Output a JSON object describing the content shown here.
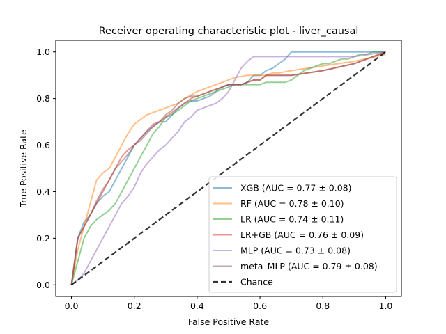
{
  "chart_data": {
    "type": "line",
    "title": "Receiver operating characteristic plot - liver_causal",
    "xlabel": "False Positive Rate",
    "ylabel": "True Positive Rate",
    "xlim": [
      -0.05,
      1.05
    ],
    "ylim": [
      -0.05,
      1.05
    ],
    "xticks": [
      0.0,
      0.2,
      0.4,
      0.6,
      0.8,
      1.0
    ],
    "yticks": [
      0.0,
      0.2,
      0.4,
      0.6,
      0.8,
      1.0
    ],
    "tick_labels": [
      "0.0",
      "0.2",
      "0.4",
      "0.6",
      "0.8",
      "1.0"
    ],
    "grid": false,
    "legend_position": "lower-right",
    "series": [
      {
        "name": "XGB (AUC = 0.77 ± 0.08)",
        "color": "#1f77b4",
        "x": [
          0.0,
          0.01,
          0.02,
          0.04,
          0.06,
          0.08,
          0.1,
          0.12,
          0.14,
          0.16,
          0.18,
          0.2,
          0.22,
          0.24,
          0.26,
          0.28,
          0.3,
          0.32,
          0.34,
          0.36,
          0.38,
          0.4,
          0.42,
          0.44,
          0.46,
          0.48,
          0.5,
          0.52,
          0.54,
          0.56,
          0.58,
          0.6,
          0.62,
          0.64,
          0.66,
          0.68,
          0.7,
          0.72,
          0.8,
          0.9,
          1.0
        ],
        "y": [
          0.0,
          0.1,
          0.2,
          0.27,
          0.3,
          0.35,
          0.38,
          0.4,
          0.45,
          0.5,
          0.55,
          0.6,
          0.63,
          0.66,
          0.68,
          0.7,
          0.7,
          0.73,
          0.76,
          0.78,
          0.79,
          0.79,
          0.8,
          0.81,
          0.83,
          0.85,
          0.86,
          0.86,
          0.86,
          0.87,
          0.9,
          0.9,
          0.92,
          0.93,
          0.95,
          0.97,
          1.0,
          1.0,
          1.0,
          1.0,
          1.0
        ]
      },
      {
        "name": "RF (AUC = 0.78 ± 0.10)",
        "color": "#ff7f0e",
        "x": [
          0.0,
          0.02,
          0.04,
          0.06,
          0.07,
          0.08,
          0.1,
          0.12,
          0.14,
          0.16,
          0.18,
          0.2,
          0.22,
          0.24,
          0.26,
          0.28,
          0.3,
          0.32,
          0.34,
          0.36,
          0.4,
          0.44,
          0.48,
          0.52,
          0.56,
          0.6,
          0.62,
          0.64,
          0.66,
          0.7,
          0.8,
          0.9,
          1.0
        ],
        "y": [
          0.0,
          0.15,
          0.25,
          0.35,
          0.4,
          0.45,
          0.48,
          0.5,
          0.55,
          0.6,
          0.65,
          0.69,
          0.71,
          0.73,
          0.74,
          0.75,
          0.76,
          0.77,
          0.78,
          0.8,
          0.83,
          0.85,
          0.87,
          0.89,
          0.9,
          0.9,
          0.9,
          0.91,
          0.91,
          0.92,
          0.94,
          0.96,
          0.99
        ]
      },
      {
        "name": "LR (AUC = 0.74 ± 0.11)",
        "color": "#2ca02c",
        "x": [
          0.0,
          0.02,
          0.04,
          0.06,
          0.08,
          0.1,
          0.12,
          0.14,
          0.16,
          0.18,
          0.2,
          0.22,
          0.24,
          0.26,
          0.28,
          0.3,
          0.32,
          0.34,
          0.36,
          0.38,
          0.4,
          0.42,
          0.44,
          0.46,
          0.48,
          0.5,
          0.52,
          0.54,
          0.56,
          0.6,
          0.62,
          0.64,
          0.66,
          0.68,
          0.7,
          0.72,
          0.74,
          0.76,
          0.78,
          0.8,
          0.82,
          0.84,
          0.86,
          0.88,
          0.9,
          0.92,
          0.94,
          0.96,
          1.0
        ],
        "y": [
          0.0,
          0.1,
          0.2,
          0.25,
          0.28,
          0.3,
          0.32,
          0.35,
          0.4,
          0.45,
          0.5,
          0.55,
          0.6,
          0.65,
          0.68,
          0.72,
          0.73,
          0.75,
          0.77,
          0.79,
          0.8,
          0.81,
          0.82,
          0.83,
          0.84,
          0.85,
          0.86,
          0.86,
          0.86,
          0.86,
          0.87,
          0.87,
          0.87,
          0.87,
          0.88,
          0.9,
          0.92,
          0.93,
          0.94,
          0.95,
          0.95,
          0.96,
          0.97,
          0.97,
          0.98,
          0.99,
          0.99,
          1.0,
          1.0
        ]
      },
      {
        "name": "LR+GB (AUC = 0.76 ± 0.09)",
        "color": "#d62728",
        "x": [
          0.0,
          0.01,
          0.02,
          0.04,
          0.06,
          0.08,
          0.1,
          0.12,
          0.14,
          0.16,
          0.18,
          0.2,
          0.22,
          0.24,
          0.26,
          0.28,
          0.3,
          0.32,
          0.34,
          0.36,
          0.38,
          0.4,
          0.42,
          0.44,
          0.46,
          0.48,
          0.5,
          0.52,
          0.54,
          0.56,
          0.58,
          0.6,
          0.62,
          0.64,
          0.66,
          0.7,
          0.8,
          0.9,
          1.0
        ],
        "y": [
          0.0,
          0.1,
          0.2,
          0.25,
          0.3,
          0.35,
          0.4,
          0.45,
          0.5,
          0.55,
          0.58,
          0.6,
          0.63,
          0.66,
          0.69,
          0.7,
          0.72,
          0.74,
          0.76,
          0.78,
          0.8,
          0.81,
          0.82,
          0.83,
          0.84,
          0.85,
          0.86,
          0.86,
          0.86,
          0.87,
          0.88,
          0.88,
          0.9,
          0.9,
          0.9,
          0.9,
          0.92,
          0.95,
          1.0
        ]
      },
      {
        "name": "MLP (AUC = 0.73 ± 0.08)",
        "color": "#9467bd",
        "x": [
          0.0,
          0.02,
          0.04,
          0.06,
          0.08,
          0.1,
          0.12,
          0.14,
          0.16,
          0.18,
          0.2,
          0.22,
          0.24,
          0.26,
          0.28,
          0.3,
          0.32,
          0.34,
          0.36,
          0.38,
          0.4,
          0.42,
          0.44,
          0.46,
          0.48,
          0.5,
          0.52,
          0.54,
          0.56,
          0.58,
          0.6,
          0.62,
          0.7,
          0.8,
          0.9,
          1.0
        ],
        "y": [
          0.0,
          0.02,
          0.05,
          0.1,
          0.15,
          0.2,
          0.25,
          0.3,
          0.35,
          0.38,
          0.42,
          0.48,
          0.52,
          0.55,
          0.58,
          0.6,
          0.63,
          0.66,
          0.7,
          0.72,
          0.75,
          0.76,
          0.77,
          0.78,
          0.8,
          0.83,
          0.88,
          0.93,
          0.96,
          0.98,
          0.98,
          0.98,
          0.98,
          0.98,
          0.98,
          1.0
        ]
      },
      {
        "name": "meta_MLP (AUC = 0.79 ± 0.08)",
        "color": "#8c564b",
        "x": [
          0.0,
          0.01,
          0.02,
          0.04,
          0.06,
          0.08,
          0.1,
          0.12,
          0.14,
          0.16,
          0.18,
          0.2,
          0.22,
          0.24,
          0.26,
          0.28,
          0.3,
          0.32,
          0.34,
          0.36,
          0.38,
          0.4,
          0.42,
          0.44,
          0.46,
          0.48,
          0.5,
          0.52,
          0.54,
          0.56,
          0.58,
          0.6,
          0.62,
          0.64,
          0.66,
          0.7,
          0.8,
          0.9,
          1.0
        ],
        "y": [
          0.0,
          0.1,
          0.2,
          0.25,
          0.3,
          0.36,
          0.41,
          0.45,
          0.5,
          0.53,
          0.56,
          0.6,
          0.62,
          0.65,
          0.68,
          0.7,
          0.73,
          0.75,
          0.78,
          0.8,
          0.81,
          0.81,
          0.82,
          0.83,
          0.84,
          0.85,
          0.86,
          0.86,
          0.86,
          0.87,
          0.88,
          0.88,
          0.9,
          0.9,
          0.9,
          0.9,
          0.92,
          0.95,
          1.0
        ]
      },
      {
        "name": "Chance",
        "color": "#000000",
        "dashed": true,
        "x": [
          0.0,
          1.0
        ],
        "y": [
          0.0,
          1.0
        ]
      }
    ]
  }
}
